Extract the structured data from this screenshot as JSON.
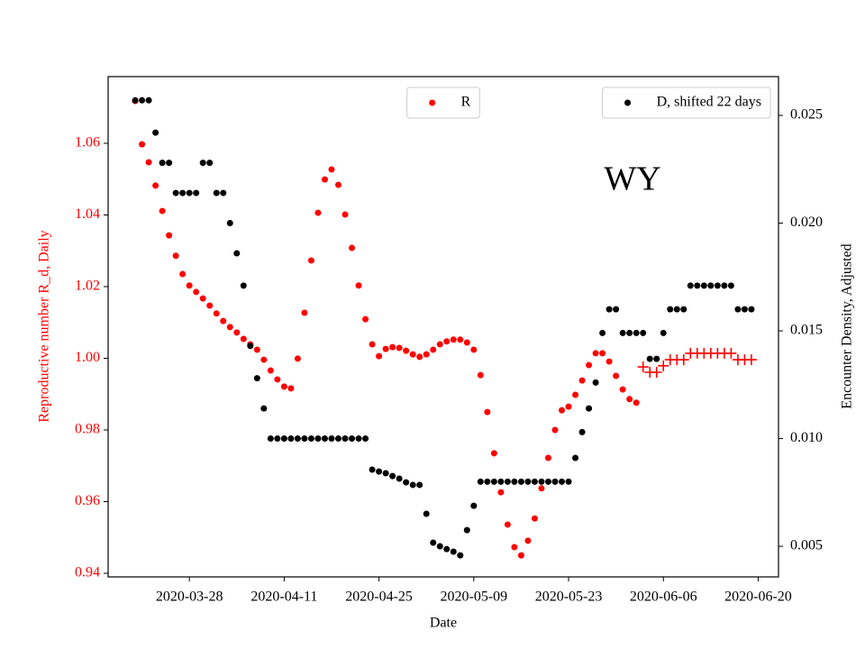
{
  "chart_data": {
    "type": "scatter",
    "x_label": "Date",
    "y_label": "Reproductive number R_d, Daily",
    "y2_label": "Encounter Density, Adjusted",
    "y_label_color": "#ff0000",
    "annotation": "WY",
    "x": [
      "2020-03-20",
      "2020-03-21",
      "2020-03-22",
      "2020-03-23",
      "2020-03-24",
      "2020-03-25",
      "2020-03-26",
      "2020-03-27",
      "2020-03-28",
      "2020-03-29",
      "2020-03-30",
      "2020-03-31",
      "2020-04-01",
      "2020-04-02",
      "2020-04-03",
      "2020-04-04",
      "2020-04-05",
      "2020-04-06",
      "2020-04-07",
      "2020-04-08",
      "2020-04-09",
      "2020-04-10",
      "2020-04-11",
      "2020-04-12",
      "2020-04-13",
      "2020-04-14",
      "2020-04-15",
      "2020-04-16",
      "2020-04-17",
      "2020-04-18",
      "2020-04-19",
      "2020-04-20",
      "2020-04-21",
      "2020-04-22",
      "2020-04-23",
      "2020-04-24",
      "2020-04-25",
      "2020-04-26",
      "2020-04-27",
      "2020-04-28",
      "2020-04-29",
      "2020-04-30",
      "2020-05-01",
      "2020-05-02",
      "2020-05-03",
      "2020-05-04",
      "2020-05-05",
      "2020-05-06",
      "2020-05-07",
      "2020-05-08",
      "2020-05-09",
      "2020-05-10",
      "2020-05-11",
      "2020-05-12",
      "2020-05-13",
      "2020-05-14",
      "2020-05-15",
      "2020-05-16",
      "2020-05-17",
      "2020-05-18",
      "2020-05-19",
      "2020-05-20",
      "2020-05-21",
      "2020-05-22",
      "2020-05-23",
      "2020-05-24",
      "2020-05-25",
      "2020-05-26",
      "2020-05-27",
      "2020-05-28",
      "2020-05-29",
      "2020-05-30",
      "2020-05-31",
      "2020-06-01",
      "2020-06-02",
      "2020-06-03",
      "2020-06-04",
      "2020-06-05",
      "2020-06-06",
      "2020-06-07",
      "2020-06-08",
      "2020-06-09",
      "2020-06-10",
      "2020-06-11",
      "2020-06-12",
      "2020-06-13",
      "2020-06-14",
      "2020-06-15",
      "2020-06-16",
      "2020-06-17",
      "2020-06-18",
      "2020-06-19"
    ],
    "series": [
      {
        "name": "R",
        "color": "#ff0000",
        "marker": "o",
        "legend": "upper center",
        "values": [
          1.0718,
          1.0597,
          1.0547,
          1.0482,
          1.0411,
          1.0343,
          1.0286,
          1.0235,
          1.0203,
          1.0185,
          1.0167,
          1.0147,
          1.0125,
          1.0104,
          1.0087,
          1.0072,
          1.0054,
          1.0039,
          1.0024,
          0.9996,
          0.9966,
          0.9941,
          0.9921,
          0.9916,
          0.9999,
          1.0127,
          1.0273,
          1.0406,
          1.0499,
          1.0527,
          1.0484,
          1.0401,
          1.0308,
          1.0203,
          1.0109,
          1.0039,
          1.0006,
          1.0026,
          1.0031,
          1.0029,
          1.0021,
          1.0011,
          1.0004,
          1.0011,
          1.0024,
          1.0039,
          1.0047,
          1.0052,
          1.0052,
          1.0044,
          1.0024,
          0.9953,
          0.985,
          0.9735,
          0.9626,
          0.9536,
          0.9473,
          0.945,
          0.9491,
          0.9553,
          0.9637,
          0.9722,
          0.98,
          0.9855,
          0.9865,
          0.9898,
          0.9938,
          0.9981,
          1.0014,
          1.0014,
          0.9991,
          0.9951,
          0.9913,
          0.9886,
          0.9876,
          null,
          null,
          null,
          null,
          null,
          null,
          null,
          null,
          null,
          null,
          null,
          null,
          null,
          null,
          null,
          null,
          null
        ]
      },
      {
        "color": "#ff0000",
        "marker": "+",
        "values": [
          null,
          null,
          null,
          null,
          null,
          null,
          null,
          null,
          null,
          null,
          null,
          null,
          null,
          null,
          null,
          null,
          null,
          null,
          null,
          null,
          null,
          null,
          null,
          null,
          null,
          null,
          null,
          null,
          null,
          null,
          null,
          null,
          null,
          null,
          null,
          null,
          null,
          null,
          null,
          null,
          null,
          null,
          null,
          null,
          null,
          null,
          null,
          null,
          null,
          null,
          null,
          null,
          null,
          null,
          null,
          null,
          null,
          null,
          null,
          null,
          null,
          null,
          null,
          null,
          null,
          null,
          null,
          null,
          null,
          null,
          null,
          null,
          null,
          null,
          null,
          0.9976,
          0.9961,
          0.9961,
          0.9979,
          0.9996,
          0.9996,
          0.9996,
          1.0014,
          1.0014,
          1.0014,
          1.0014,
          1.0014,
          1.0014,
          1.0014,
          0.9996,
          0.9996,
          0.9996
        ]
      },
      {
        "name": "D, shifted 22 days",
        "color": "#000000",
        "marker": "o",
        "axis": "y2",
        "legend": "upper right",
        "values": [
          0.0257,
          0.0257,
          0.0257,
          0.0242,
          0.0228,
          0.0228,
          0.0214,
          0.0214,
          0.0214,
          0.0214,
          0.0228,
          0.0228,
          0.0214,
          0.0214,
          0.02,
          0.0186,
          0.0171,
          0.0143,
          0.0128,
          0.0114,
          0.01,
          0.01,
          0.01,
          0.01,
          0.01,
          0.01,
          0.01,
          0.01,
          0.01,
          0.01,
          0.01,
          0.01,
          0.01,
          0.01,
          0.01,
          0.00856,
          0.00847,
          0.00839,
          0.00826,
          0.00814,
          0.00797,
          0.00785,
          0.00785,
          0.00651,
          0.00517,
          0.005,
          0.00487,
          0.00475,
          0.00458,
          0.00575,
          0.00688,
          0.008,
          0.008,
          0.008,
          0.008,
          0.008,
          0.008,
          0.008,
          0.008,
          0.008,
          0.008,
          0.008,
          0.008,
          0.008,
          0.008,
          0.0091,
          0.0103,
          0.0114,
          0.0126,
          0.0149,
          0.016,
          0.016,
          0.0149,
          0.0149,
          0.0149,
          0.0149,
          0.0137,
          0.0137,
          0.0149,
          0.016,
          0.016,
          0.016,
          0.0171,
          0.0171,
          0.0171,
          0.0171,
          0.0171,
          0.0171,
          0.0171,
          0.016,
          0.016,
          0.016
        ]
      }
    ],
    "xlim": [
      "2020-03-16",
      "2020-06-23"
    ],
    "xticks": [
      "2020-03-28",
      "2020-04-11",
      "2020-04-25",
      "2020-05-09",
      "2020-05-23",
      "2020-06-06",
      "2020-06-20"
    ],
    "ylim": [
      0.939,
      1.0786
    ],
    "yticks": [
      0.94,
      0.96,
      0.98,
      {
        "value": 1,
        "label": "1.00"
      },
      1.02,
      1.04,
      1.06
    ],
    "y2lim": [
      0.00358,
      0.0268
    ],
    "y2ticks": [
      0.005,
      {
        "value": 0.01,
        "label": "0.010"
      },
      0.015,
      {
        "value": 0.02,
        "label": "0.020"
      },
      0.025
    ],
    "grid": false
  }
}
